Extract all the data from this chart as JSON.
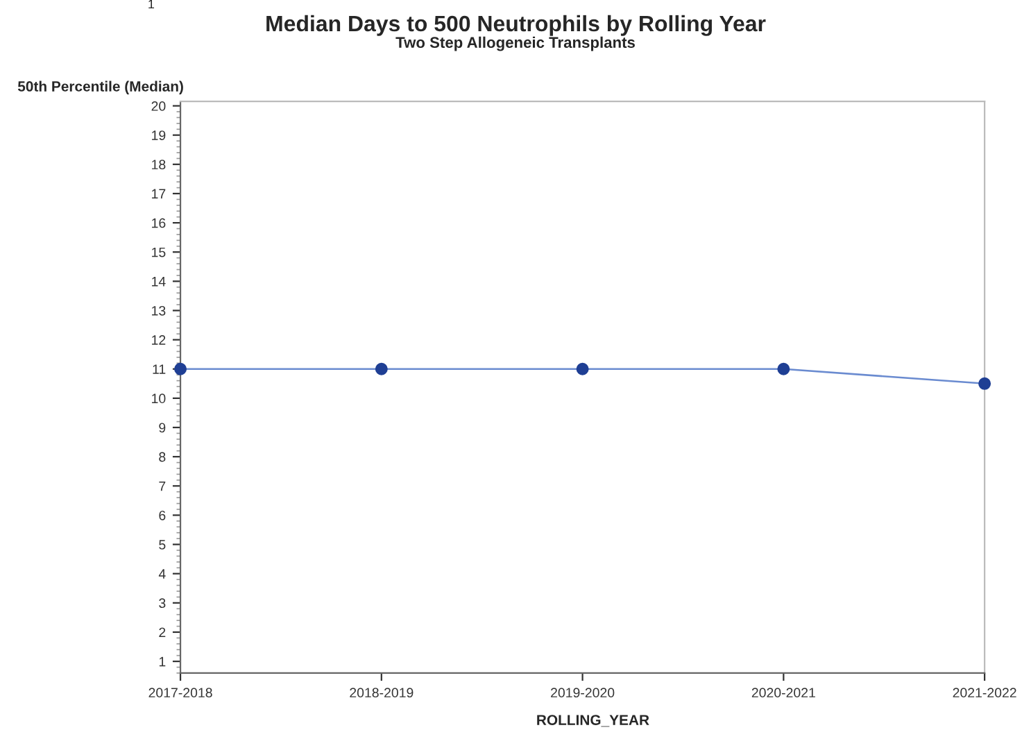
{
  "chart_data": {
    "type": "line",
    "title": "Median Days to 500 Neutrophils by Rolling Year",
    "subtitle": "Two Step Allogeneic Transplants",
    "xlabel": "ROLLING_YEAR",
    "ylabel": "50th Percentile (Median)",
    "categories": [
      "2017-2018",
      "2018-2019",
      "2019-2020",
      "2020-2021",
      "2021-2022"
    ],
    "series": [
      {
        "color": "#1f3f94",
        "values": [
          11,
          11,
          11,
          11,
          10.5
        ]
      }
    ],
    "ylim": [
      0.6,
      20.15
    ],
    "yticks": [
      1,
      2,
      3,
      4,
      5,
      6,
      7,
      8,
      9,
      10,
      11,
      12,
      13,
      14,
      15,
      16,
      17,
      18,
      19,
      20
    ],
    "marker": "circle",
    "line_style": "solid",
    "grid": false,
    "legend": false,
    "annotations": [
      "1"
    ]
  }
}
